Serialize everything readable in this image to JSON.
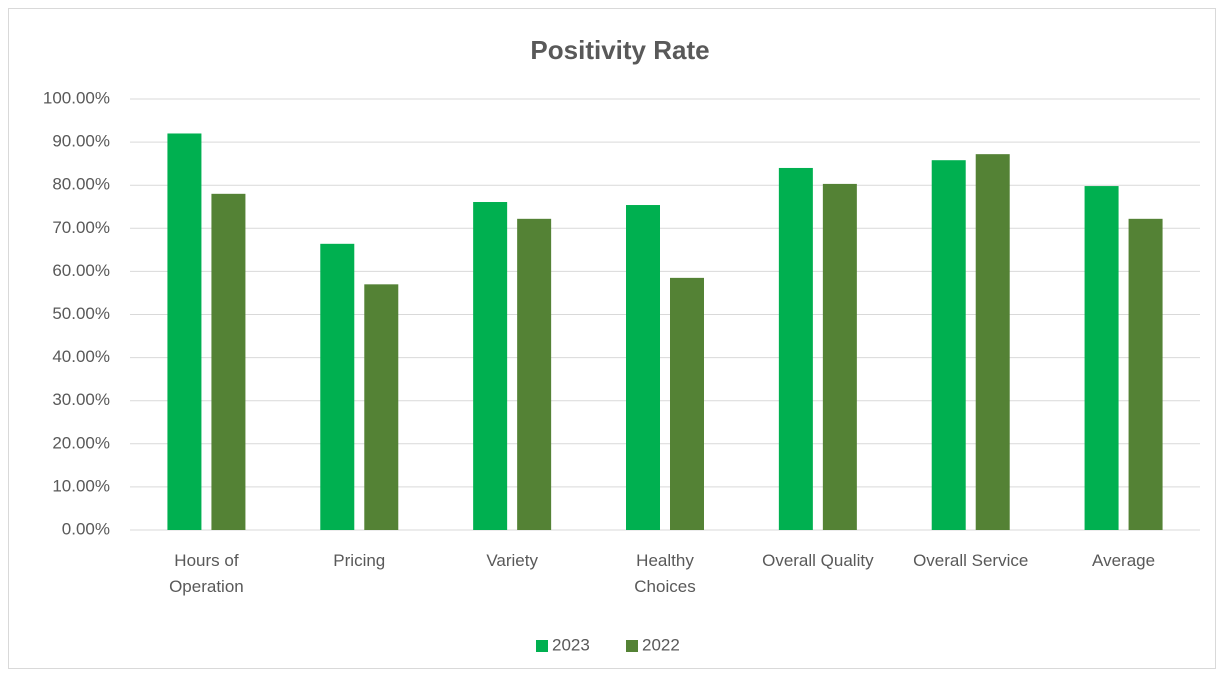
{
  "chart_data": {
    "type": "bar",
    "title": "Positivity Rate",
    "categories": [
      "Hours of Operation",
      "Pricing",
      "Variety",
      "Healthy Choices",
      "Overall Quality",
      "Overall Service",
      "Average"
    ],
    "series": [
      {
        "name": "2023",
        "color": "#00b050",
        "values": [
          92,
          66.4,
          76.1,
          75.4,
          84,
          85.8,
          79.8
        ]
      },
      {
        "name": "2022",
        "color": "#548235",
        "values": [
          78,
          57,
          72.2,
          58.5,
          80.3,
          87.2,
          72.2
        ]
      }
    ],
    "ylim": [
      0,
      100
    ],
    "yticks": [
      {
        "value": 0,
        "label": "0.00%"
      },
      {
        "value": 10,
        "label": "10.00%"
      },
      {
        "value": 20,
        "label": "20.00%"
      },
      {
        "value": 30,
        "label": "30.00%"
      },
      {
        "value": 40,
        "label": "40.00%"
      },
      {
        "value": 50,
        "label": "50.00%"
      },
      {
        "value": 60,
        "label": "60.00%"
      },
      {
        "value": 70,
        "label": "70.00%"
      },
      {
        "value": 80,
        "label": "80.00%"
      },
      {
        "value": 90,
        "label": "90.00%"
      },
      {
        "value": 100,
        "label": "100.00%"
      }
    ],
    "grid": true,
    "legend": "bottom"
  }
}
